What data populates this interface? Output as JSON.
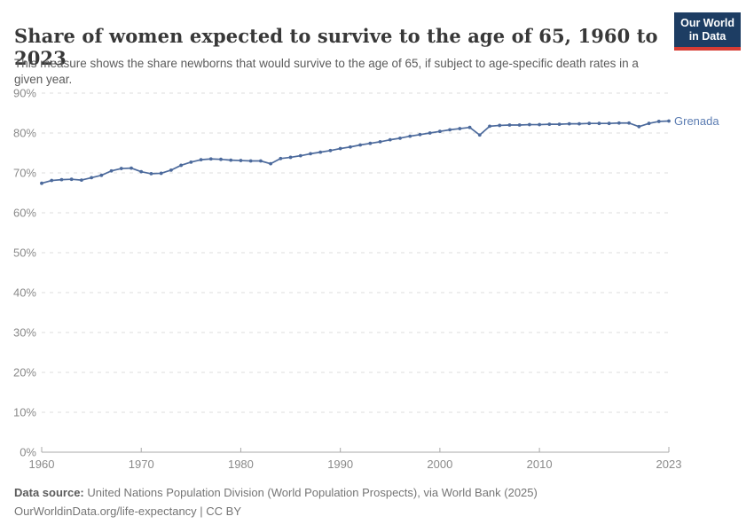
{
  "header": {
    "title": "Share of women expected to survive to the age of 65, 1960 to 2023",
    "subtitle": "This measure shows the share newborns that would survive to the age of 65, if subject to age-specific death rates in a given year.",
    "logo": {
      "line1": "Our World",
      "line2": "in Data",
      "bg_color": "#1d3d63",
      "accent_color": "#d73c34"
    }
  },
  "chart_data": {
    "type": "line",
    "title": "Share of women expected to survive to the age of 65, 1960 to 2023",
    "xlabel": "",
    "ylabel": "",
    "xlim": [
      1960,
      2023
    ],
    "ylim": [
      0,
      90
    ],
    "grid": "horizontal-dashed",
    "legend_position": "end-of-line-label",
    "x_ticks": [
      1960,
      1970,
      1980,
      1990,
      2000,
      2010,
      2023
    ],
    "y_ticks": [
      0,
      10,
      20,
      30,
      40,
      50,
      60,
      70,
      80,
      90
    ],
    "y_tick_suffix": "%",
    "colors": {
      "line": "#4c6a9c",
      "end_label": "#5b7cb2",
      "grid": "#dcdcdc",
      "axis": "#a8a8a8",
      "tick_label": "#8a8a8a"
    },
    "series": [
      {
        "name": "Grenada",
        "color": "#4c6a9c",
        "x": [
          1960,
          1961,
          1962,
          1963,
          1964,
          1965,
          1966,
          1967,
          1968,
          1969,
          1970,
          1971,
          1972,
          1973,
          1974,
          1975,
          1976,
          1977,
          1978,
          1979,
          1980,
          1981,
          1982,
          1983,
          1984,
          1985,
          1986,
          1987,
          1988,
          1989,
          1990,
          1991,
          1992,
          1993,
          1994,
          1995,
          1996,
          1997,
          1998,
          1999,
          2000,
          2001,
          2002,
          2003,
          2004,
          2005,
          2006,
          2007,
          2008,
          2009,
          2010,
          2011,
          2012,
          2013,
          2014,
          2015,
          2016,
          2017,
          2018,
          2019,
          2020,
          2021,
          2022,
          2023
        ],
        "values": [
          67.4,
          68.1,
          68.3,
          68.4,
          68.2,
          68.8,
          69.4,
          70.5,
          71.1,
          71.2,
          70.3,
          69.8,
          69.9,
          70.7,
          71.9,
          72.7,
          73.3,
          73.5,
          73.4,
          73.2,
          73.1,
          73.0,
          73.0,
          72.3,
          73.6,
          73.9,
          74.3,
          74.8,
          75.2,
          75.6,
          76.1,
          76.5,
          77.0,
          77.4,
          77.8,
          78.3,
          78.7,
          79.2,
          79.6,
          80.0,
          80.4,
          80.8,
          81.1,
          81.4,
          79.5,
          81.7,
          81.9,
          82.0,
          82.0,
          82.1,
          82.1,
          82.2,
          82.2,
          82.3,
          82.3,
          82.4,
          82.4,
          82.4,
          82.5,
          82.5,
          81.6,
          82.4,
          82.9,
          83.0
        ]
      }
    ]
  },
  "footer": {
    "source_label": "Data source:",
    "source_text": " United Nations Population Division (World Population Prospects), via World Bank (2025)",
    "link_text": "OurWorldinData.org/life-expectancy",
    "license_text": " | CC BY"
  }
}
